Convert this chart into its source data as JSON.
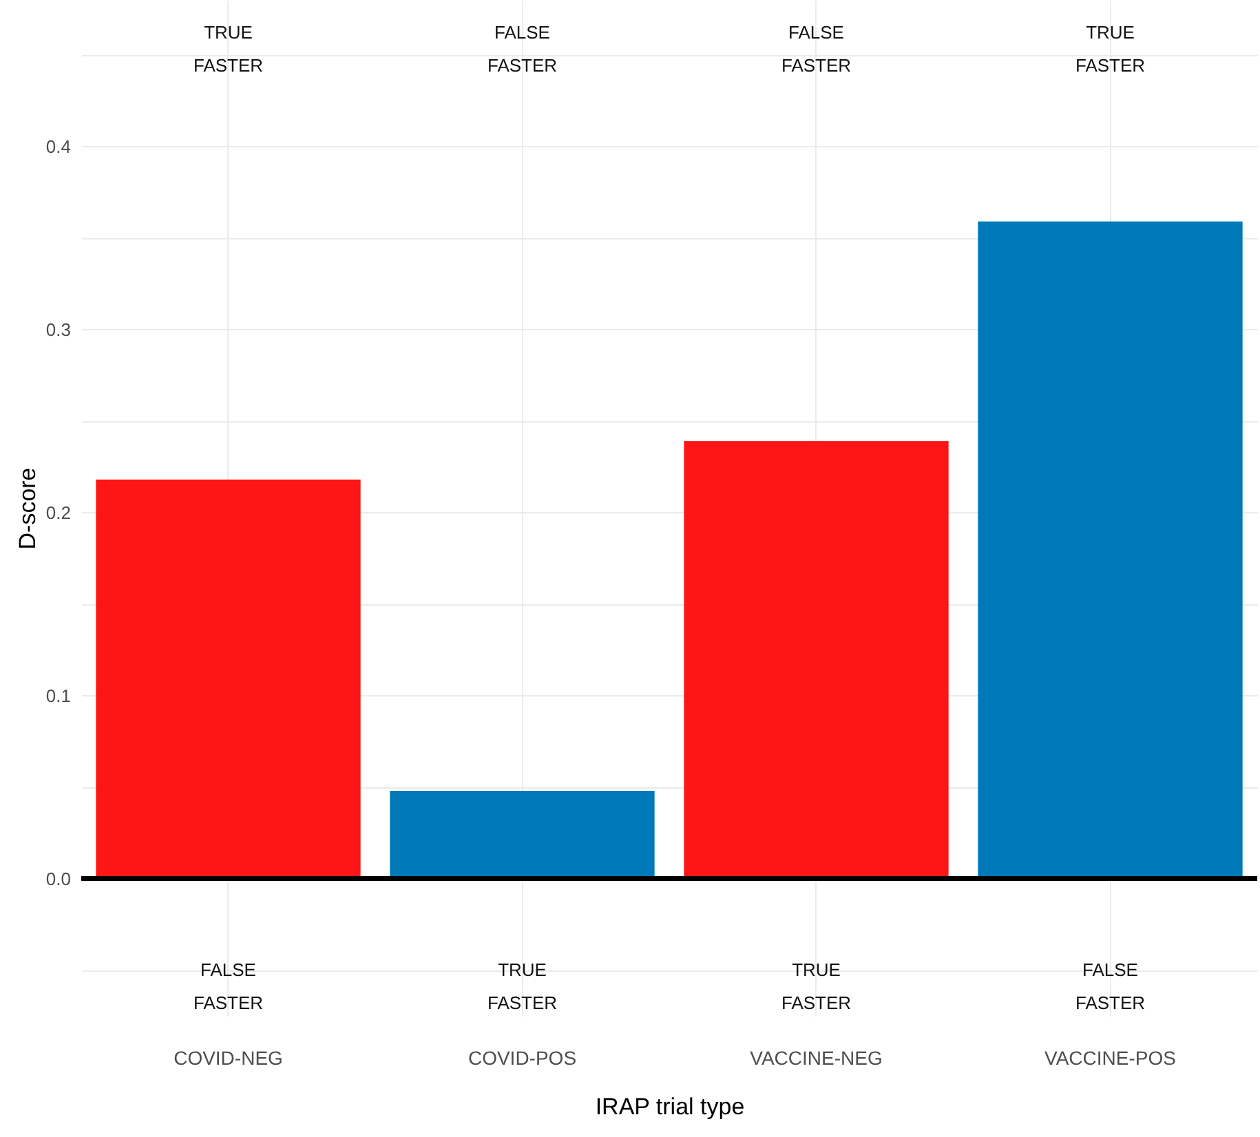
{
  "chart_data": {
    "type": "bar",
    "xlabel": "IRAP trial type",
    "ylabel": "D-score",
    "categories": [
      "COVID-NEG",
      "COVID-POS",
      "VACCINE-NEG",
      "VACCINE-POS"
    ],
    "values": [
      0.218,
      0.048,
      0.239,
      0.359
    ],
    "colors": [
      "#fe1616",
      "#0079b8",
      "#fe1616",
      "#0079b8"
    ],
    "ylim": [
      -0.075,
      0.48
    ],
    "yticks": [
      {
        "value": -0.05,
        "label": null
      },
      {
        "value": 0,
        "label": "0.0"
      },
      {
        "value": 0.05,
        "label": null
      },
      0.1,
      {
        "value": 0.15,
        "label": null
      },
      0.2,
      {
        "value": 0.25,
        "label": null
      },
      0.3,
      {
        "value": 0.35,
        "label": null
      },
      0.4,
      {
        "value": 0.45,
        "label": null
      }
    ],
    "grid": true,
    "ref_lines": [
      {
        "axis": "y",
        "value": 0,
        "color": "#000000"
      }
    ],
    "annotations": [
      "TRUE\nFASTER",
      "FALSE\nFASTER",
      "FALSE\nFASTER",
      "TRUE\nFASTER",
      "FALSE\nFASTER",
      "TRUE\nFASTER",
      "TRUE\nFASTER",
      "FALSE\nFASTER"
    ]
  }
}
